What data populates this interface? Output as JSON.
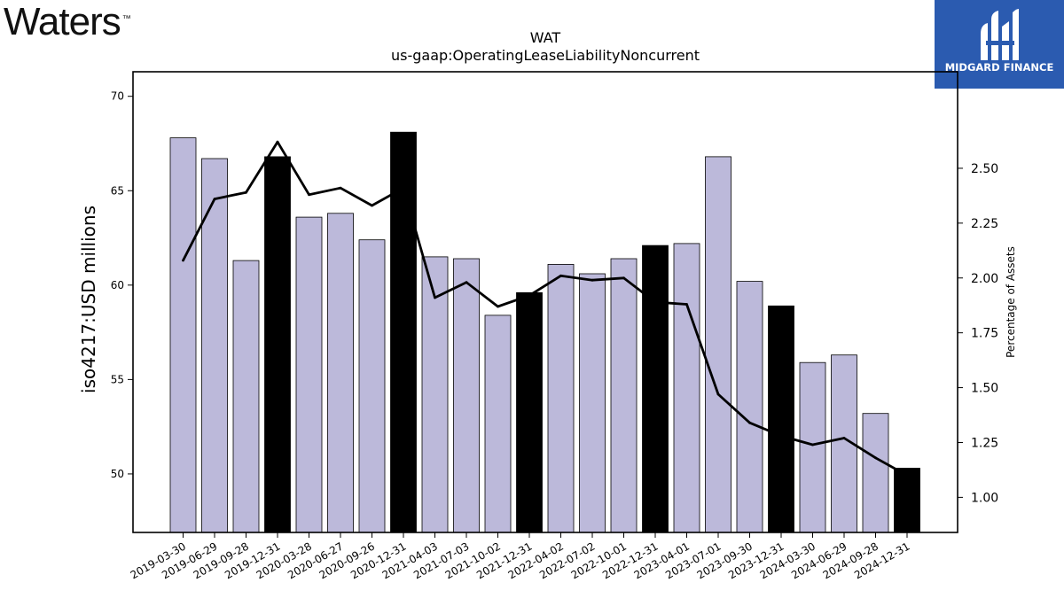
{
  "logos": {
    "left_text": "Waters",
    "left_tm": "™",
    "right_text": "MIDGARD FINANCE"
  },
  "colors": {
    "bar_quarter": "#bcb9da",
    "bar_year_end": "#000000",
    "line": "#000000",
    "logo_right_bg": "#2b5bb0"
  },
  "chart_data": {
    "type": "bar",
    "title": "WAT",
    "subtitle": "us-gaap:OperatingLeaseLiabilityNoncurrent",
    "ylabel": "iso4217:USD  millions",
    "y2label": "Percentage of Assets",
    "ylim": [
      46.9,
      71.3
    ],
    "y2lim": [
      0.84,
      2.94
    ],
    "yticks": [
      50,
      55,
      60,
      65,
      70
    ],
    "y2ticks": [
      "1.00",
      "1.25",
      "1.50",
      "1.75",
      "2.00",
      "2.25",
      "2.50"
    ],
    "categories": [
      "2019-03-30",
      "2019-06-29",
      "2019-09-28",
      "2019-12-31",
      "2020-03-28",
      "2020-06-27",
      "2020-09-26",
      "2020-12-31",
      "2021-04-03",
      "2021-07-03",
      "2021-10-02",
      "2021-12-31",
      "2022-04-02",
      "2022-07-02",
      "2022-10-01",
      "2022-12-31",
      "2023-04-01",
      "2023-07-01",
      "2023-09-30",
      "2023-12-31",
      "2024-03-30",
      "2024-06-29",
      "2024-09-28",
      "2024-12-31"
    ],
    "series": [
      {
        "values": [
          67.8,
          66.7,
          61.3,
          66.8,
          63.6,
          63.8,
          62.4,
          68.1,
          61.5,
          61.4,
          58.4,
          59.6,
          61.1,
          60.6,
          61.4,
          62.1,
          62.2,
          66.8,
          60.2,
          58.9,
          55.9,
          56.3,
          53.2,
          50.3
        ],
        "year_end": [
          false,
          false,
          false,
          true,
          false,
          false,
          false,
          true,
          false,
          false,
          false,
          true,
          false,
          false,
          false,
          true,
          false,
          false,
          false,
          true,
          false,
          false,
          false,
          true
        ]
      },
      {
        "axis": "right",
        "values": [
          2.08,
          2.36,
          2.39,
          2.62,
          2.38,
          2.41,
          2.33,
          2.41,
          1.91,
          1.98,
          1.87,
          1.92,
          2.01,
          1.99,
          2.0,
          1.89,
          1.88,
          1.47,
          1.34,
          1.28,
          1.24,
          1.27,
          1.18,
          1.1
        ]
      }
    ]
  }
}
